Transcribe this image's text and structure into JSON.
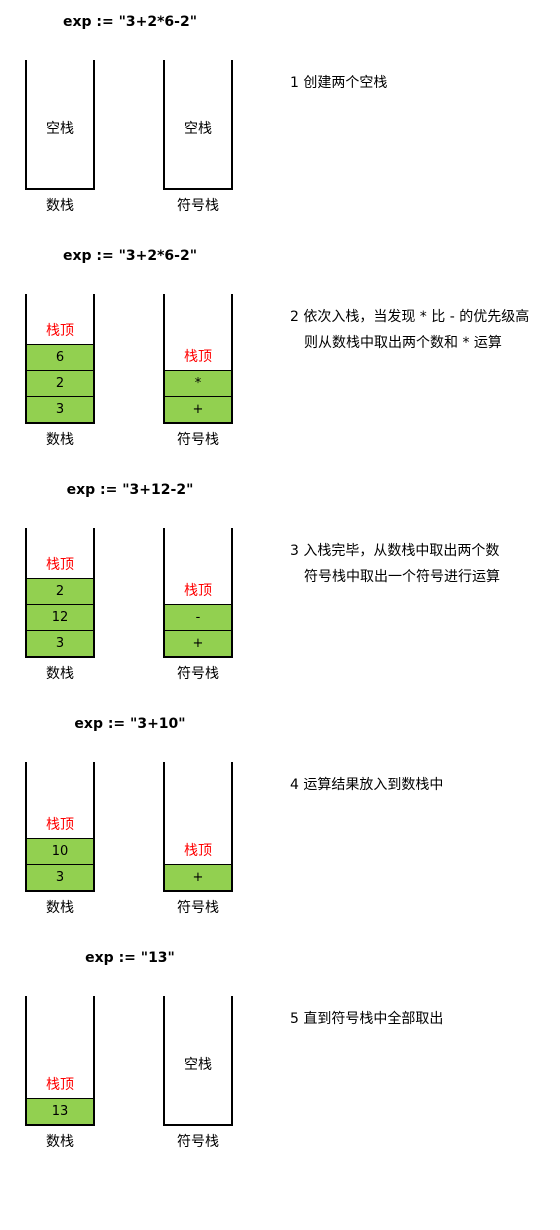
{
  "labels": {
    "num_stack": "数栈",
    "op_stack": "符号栈",
    "empty": "空栈",
    "top": "栈顶"
  },
  "steps": [
    {
      "expr": "exp := \"3+2*6-2\"",
      "desc": [
        "1 创建两个空栈"
      ],
      "num_stack": [],
      "op_stack": []
    },
    {
      "expr": "exp := \"3+2*6-2\"",
      "desc": [
        "2 依次入栈，当发现 * 比 - 的优先级高",
        "则从数栈中取出两个数和 * 运算"
      ],
      "num_stack": [
        "3",
        "2",
        "6"
      ],
      "op_stack": [
        "+",
        "*"
      ]
    },
    {
      "expr": "exp := \"3+12-2\"",
      "desc": [
        "3 入栈完毕，从数栈中取出两个数",
        "符号栈中取出一个符号进行运算"
      ],
      "num_stack": [
        "3",
        "12",
        "2"
      ],
      "op_stack": [
        "+",
        "-"
      ]
    },
    {
      "expr": "exp := \"3+10\"",
      "desc": [
        "4 运算结果放入到数栈中"
      ],
      "num_stack": [
        "3",
        "10"
      ],
      "op_stack": [
        "+"
      ]
    },
    {
      "expr": "exp := \"13\"",
      "desc": [
        "5 直到符号栈中全部取出"
      ],
      "num_stack": [
        "13"
      ],
      "op_stack": []
    }
  ]
}
